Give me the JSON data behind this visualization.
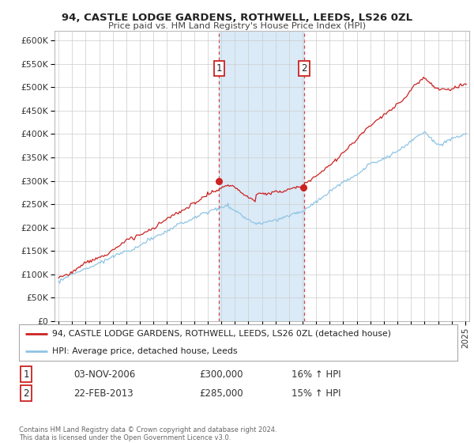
{
  "title": "94, CASTLE LODGE GARDENS, ROTHWELL, LEEDS, LS26 0ZL",
  "subtitle": "Price paid vs. HM Land Registry's House Price Index (HPI)",
  "xlim_start": 1995.0,
  "xlim_end": 2025.3,
  "ylim_min": 0,
  "ylim_max": 620000,
  "yticks": [
    0,
    50000,
    100000,
    150000,
    200000,
    250000,
    300000,
    350000,
    400000,
    450000,
    500000,
    550000,
    600000
  ],
  "ytick_labels": [
    "£0",
    "£50K",
    "£100K",
    "£150K",
    "£200K",
    "£250K",
    "£300K",
    "£350K",
    "£400K",
    "£450K",
    "£500K",
    "£550K",
    "£600K"
  ],
  "xticks": [
    1995,
    1996,
    1997,
    1998,
    1999,
    2000,
    2001,
    2002,
    2003,
    2004,
    2005,
    2006,
    2007,
    2008,
    2009,
    2010,
    2011,
    2012,
    2013,
    2014,
    2015,
    2016,
    2017,
    2018,
    2019,
    2020,
    2021,
    2022,
    2023,
    2024,
    2025
  ],
  "hpi_color": "#8fc4e4",
  "price_color": "#cc2222",
  "sale1_x": 2006.85,
  "sale1_y": 300000,
  "sale2_x": 2013.12,
  "sale2_y": 285000,
  "shade_color": "#daeaf7",
  "legend_label1": "94, CASTLE LODGE GARDENS, ROTHWELL, LEEDS, LS26 0ZL (detached house)",
  "legend_label2": "HPI: Average price, detached house, Leeds",
  "table_row1": [
    "1",
    "03-NOV-2006",
    "£300,000",
    "16% ↑ HPI"
  ],
  "table_row2": [
    "2",
    "22-FEB-2013",
    "£285,000",
    "15% ↑ HPI"
  ],
  "footnote": "Contains HM Land Registry data © Crown copyright and database right 2024.\nThis data is licensed under the Open Government Licence v3.0.",
  "background_color": "#ffffff"
}
